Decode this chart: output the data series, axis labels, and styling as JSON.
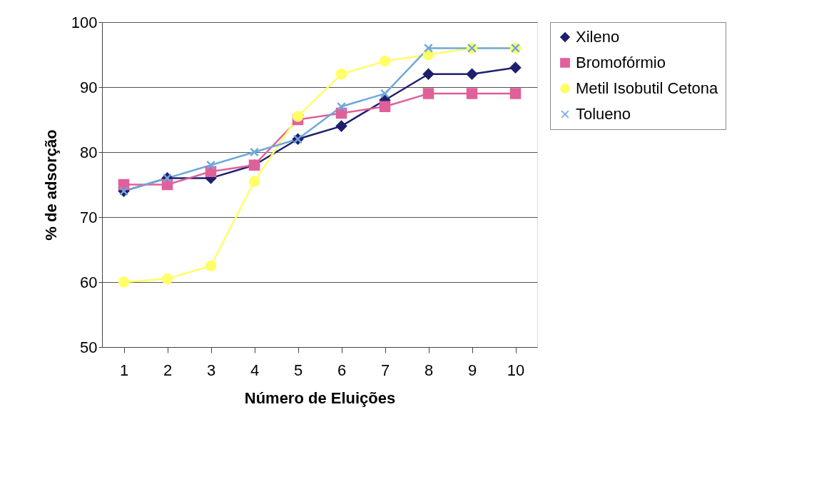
{
  "chart_data": {
    "type": "line",
    "xlabel": "Número de Eluições",
    "ylabel": "% de adsorção",
    "categories": [
      "1",
      "2",
      "3",
      "4",
      "5",
      "6",
      "7",
      "8",
      "9",
      "10"
    ],
    "series": [
      {
        "name": "Xileno",
        "color": "#1f1f6e",
        "marker": "diamond",
        "values": [
          74,
          76,
          76,
          78,
          82,
          84,
          88,
          92,
          92,
          93
        ]
      },
      {
        "name": "Bromofórmio",
        "color": "#e0609a",
        "marker": "square",
        "values": [
          75,
          75,
          77,
          78,
          85,
          86,
          87,
          89,
          89,
          89
        ]
      },
      {
        "name": "Metil Isobutil Cetona",
        "color": "#ffff66",
        "marker": "circle",
        "values": [
          60,
          60.5,
          62.5,
          75.5,
          85.5,
          92,
          94,
          95,
          96,
          96
        ]
      },
      {
        "name": "Tolueno",
        "color": "#6fa8dc",
        "marker": "cross",
        "values": [
          74,
          76,
          78,
          80,
          82,
          87,
          89,
          96,
          96,
          96
        ]
      }
    ],
    "ylim": [
      50,
      100
    ],
    "yticks": [
      50,
      60,
      70,
      80,
      90,
      100
    ],
    "grid": "y",
    "legend": "right",
    "line_style": "solid"
  }
}
